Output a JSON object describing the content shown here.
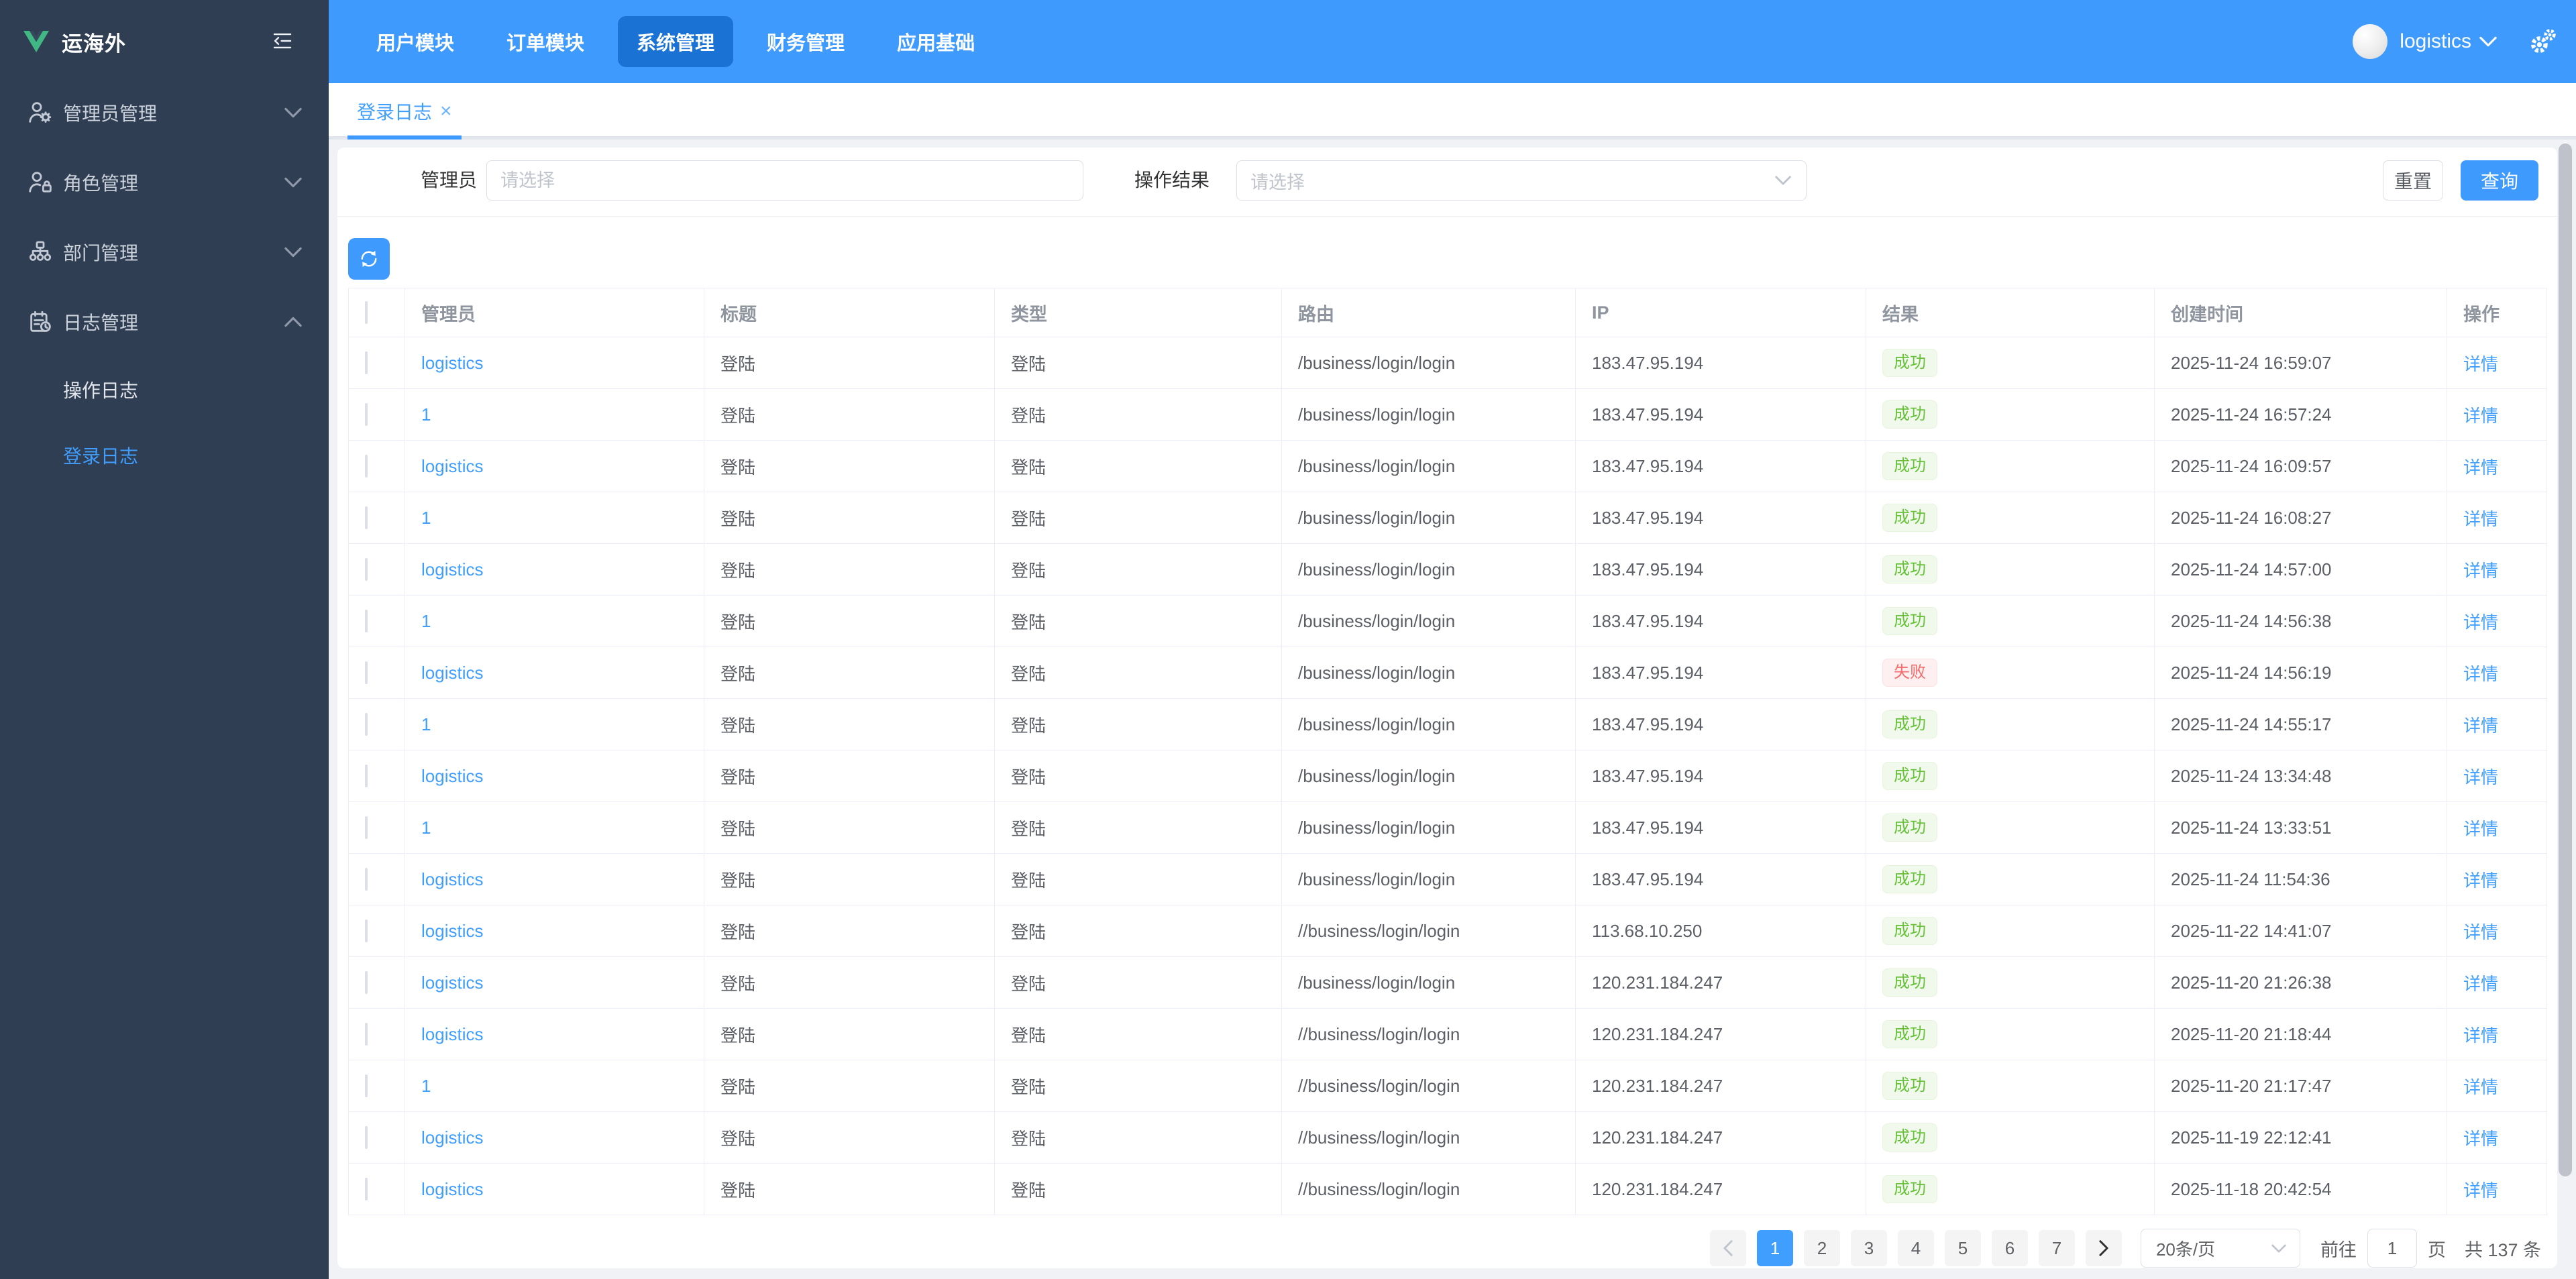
{
  "app": {
    "logo_title": "运海外"
  },
  "colors": {
    "primary": "#3f9afd",
    "nav_active": "#1a73d4",
    "sidebar_bg": "#2f3e52",
    "success": "#67c23a",
    "danger": "#f56c6c",
    "link": "#409eff"
  },
  "sidebar": {
    "menu": [
      {
        "key": "admin-management",
        "label": "管理员管理",
        "icon": "user-gear-icon",
        "state": "collapsed"
      },
      {
        "key": "role-management",
        "label": "角色管理",
        "icon": "user-lock-icon",
        "state": "collapsed"
      },
      {
        "key": "department-management",
        "label": "部门管理",
        "icon": "org-tree-icon",
        "state": "collapsed"
      },
      {
        "key": "log-management",
        "label": "日志管理",
        "icon": "log-calendar-icon",
        "state": "expanded",
        "children": [
          {
            "key": "operation-log",
            "label": "操作日志",
            "active": false
          },
          {
            "key": "login-log",
            "label": "登录日志",
            "active": true
          }
        ]
      }
    ]
  },
  "navbar": {
    "tabs": [
      {
        "key": "user-module",
        "label": "用户模块",
        "active": false
      },
      {
        "key": "order-module",
        "label": "订单模块",
        "active": false
      },
      {
        "key": "system-management",
        "label": "系统管理",
        "active": true
      },
      {
        "key": "finance-management",
        "label": "财务管理",
        "active": false
      },
      {
        "key": "app-base",
        "label": "应用基础",
        "active": false
      }
    ],
    "user": {
      "name": "logistics"
    }
  },
  "tabbar": {
    "tabs": [
      {
        "key": "login-log",
        "label": "登录日志",
        "close": "×",
        "active": true
      }
    ]
  },
  "filters": {
    "admin": {
      "label": "管理员",
      "placeholder": "请选择",
      "value": ""
    },
    "result": {
      "label": "操作结果",
      "placeholder": "请选择",
      "value": ""
    },
    "reset_label": "重置",
    "search_label": "查询"
  },
  "table": {
    "columns": [
      "管理员",
      "标题",
      "类型",
      "路由",
      "IP",
      "结果",
      "创建时间",
      "操作"
    ],
    "action_label": "详情",
    "rows": [
      {
        "admin": "logistics",
        "title": "登陆",
        "type": "登陆",
        "route": "/business/login/login",
        "ip": "183.47.95.194",
        "result": "成功",
        "status": "success",
        "time": "2025-11-24 16:59:07"
      },
      {
        "admin": "1",
        "title": "登陆",
        "type": "登陆",
        "route": "/business/login/login",
        "ip": "183.47.95.194",
        "result": "成功",
        "status": "success",
        "time": "2025-11-24 16:57:24"
      },
      {
        "admin": "logistics",
        "title": "登陆",
        "type": "登陆",
        "route": "/business/login/login",
        "ip": "183.47.95.194",
        "result": "成功",
        "status": "success",
        "time": "2025-11-24 16:09:57"
      },
      {
        "admin": "1",
        "title": "登陆",
        "type": "登陆",
        "route": "/business/login/login",
        "ip": "183.47.95.194",
        "result": "成功",
        "status": "success",
        "time": "2025-11-24 16:08:27"
      },
      {
        "admin": "logistics",
        "title": "登陆",
        "type": "登陆",
        "route": "/business/login/login",
        "ip": "183.47.95.194",
        "result": "成功",
        "status": "success",
        "time": "2025-11-24 14:57:00"
      },
      {
        "admin": "1",
        "title": "登陆",
        "type": "登陆",
        "route": "/business/login/login",
        "ip": "183.47.95.194",
        "result": "成功",
        "status": "success",
        "time": "2025-11-24 14:56:38"
      },
      {
        "admin": "logistics",
        "title": "登陆",
        "type": "登陆",
        "route": "/business/login/login",
        "ip": "183.47.95.194",
        "result": "失败",
        "status": "fail",
        "time": "2025-11-24 14:56:19"
      },
      {
        "admin": "1",
        "title": "登陆",
        "type": "登陆",
        "route": "/business/login/login",
        "ip": "183.47.95.194",
        "result": "成功",
        "status": "success",
        "time": "2025-11-24 14:55:17"
      },
      {
        "admin": "logistics",
        "title": "登陆",
        "type": "登陆",
        "route": "/business/login/login",
        "ip": "183.47.95.194",
        "result": "成功",
        "status": "success",
        "time": "2025-11-24 13:34:48"
      },
      {
        "admin": "1",
        "title": "登陆",
        "type": "登陆",
        "route": "/business/login/login",
        "ip": "183.47.95.194",
        "result": "成功",
        "status": "success",
        "time": "2025-11-24 13:33:51"
      },
      {
        "admin": "logistics",
        "title": "登陆",
        "type": "登陆",
        "route": "/business/login/login",
        "ip": "183.47.95.194",
        "result": "成功",
        "status": "success",
        "time": "2025-11-24 11:54:36"
      },
      {
        "admin": "logistics",
        "title": "登陆",
        "type": "登陆",
        "route": "//business/login/login",
        "ip": "113.68.10.250",
        "result": "成功",
        "status": "success",
        "time": "2025-11-22 14:41:07"
      },
      {
        "admin": "logistics",
        "title": "登陆",
        "type": "登陆",
        "route": "/business/login/login",
        "ip": "120.231.184.247",
        "result": "成功",
        "status": "success",
        "time": "2025-11-20 21:26:38"
      },
      {
        "admin": "logistics",
        "title": "登陆",
        "type": "登陆",
        "route": "//business/login/login",
        "ip": "120.231.184.247",
        "result": "成功",
        "status": "success",
        "time": "2025-11-20 21:18:44"
      },
      {
        "admin": "1",
        "title": "登陆",
        "type": "登陆",
        "route": "//business/login/login",
        "ip": "120.231.184.247",
        "result": "成功",
        "status": "success",
        "time": "2025-11-20 21:17:47"
      },
      {
        "admin": "logistics",
        "title": "登陆",
        "type": "登陆",
        "route": "//business/login/login",
        "ip": "120.231.184.247",
        "result": "成功",
        "status": "success",
        "time": "2025-11-19 22:12:41"
      },
      {
        "admin": "logistics",
        "title": "登陆",
        "type": "登陆",
        "route": "//business/login/login",
        "ip": "120.231.184.247",
        "result": "成功",
        "status": "success",
        "time": "2025-11-18 20:42:54"
      }
    ]
  },
  "pagination": {
    "pages": [
      "1",
      "2",
      "3",
      "4",
      "5",
      "6",
      "7"
    ],
    "active_page": "1",
    "page_size_label": "20条/页",
    "goto_label": "前往",
    "goto_value": "1",
    "page_unit": "页",
    "total_label": "共 137 条"
  }
}
